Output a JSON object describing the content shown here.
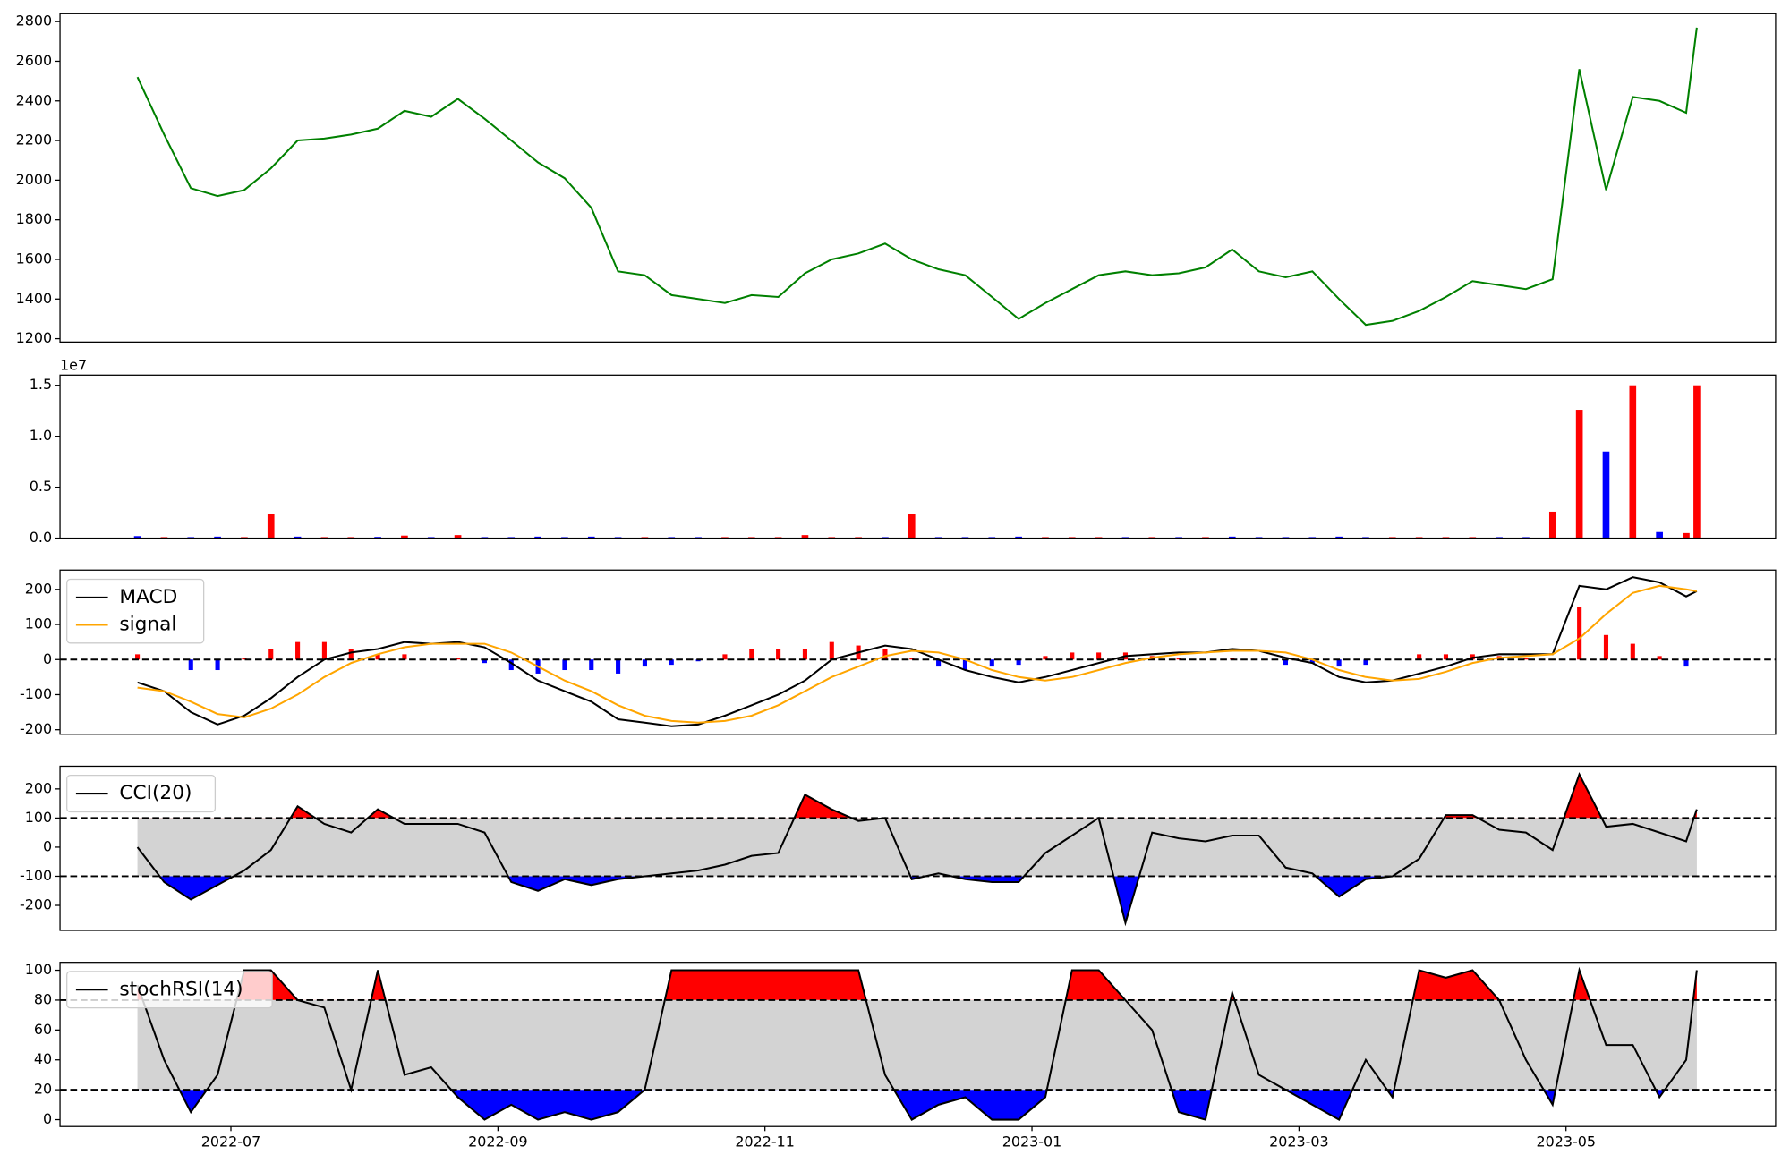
{
  "chart_data": {
    "type": "multi-panel",
    "x": [
      0.3,
      0.5,
      0.7,
      0.9,
      1.1,
      1.3,
      1.5,
      1.7,
      1.9,
      2.1,
      2.3,
      2.5,
      2.7,
      2.9,
      3.1,
      3.3,
      3.5,
      3.7,
      3.9,
      4.1,
      4.3,
      4.5,
      4.7,
      4.9,
      5.1,
      5.3,
      5.5,
      5.7,
      5.9,
      6.1,
      6.3,
      6.5,
      6.7,
      6.9,
      7.1,
      7.3,
      7.5,
      7.7,
      7.9,
      8.1,
      8.3,
      8.5,
      8.7,
      8.9,
      9.1,
      9.3,
      9.5,
      9.7,
      9.9,
      10.1,
      10.3,
      10.5,
      10.7,
      10.9,
      11.1,
      11.3,
      11.5,
      11.7,
      11.9,
      11.98
    ],
    "xlim": [
      -0.28,
      12.57
    ],
    "xticks": [
      {
        "value": 1,
        "label": "2022-07"
      },
      {
        "value": 3,
        "label": "2022-09"
      },
      {
        "value": 5,
        "label": "2022-11"
      },
      {
        "value": 7,
        "label": "2023-01"
      },
      {
        "value": 9,
        "label": "2023-03"
      },
      {
        "value": 11,
        "label": "2023-05"
      }
    ],
    "panels": [
      {
        "type": "line",
        "color": "green",
        "values": [
          2520,
          2230,
          1960,
          1920,
          1950,
          2060,
          2200,
          2210,
          2230,
          2260,
          2350,
          2320,
          2410,
          2310,
          2200,
          2090,
          2010,
          1860,
          1540,
          1520,
          1420,
          1400,
          1380,
          1420,
          1410,
          1530,
          1600,
          1630,
          1680,
          1600,
          1550,
          1520,
          1410,
          1300,
          1380,
          1450,
          1520,
          1540,
          1520,
          1530,
          1560,
          1650,
          1540,
          1510,
          1540,
          1400,
          1270,
          1290,
          1340,
          1410,
          1490,
          1470,
          1450,
          1500,
          2560,
          1950,
          2420,
          2400,
          2340,
          2770
        ],
        "ylim": [
          1183,
          2840
        ],
        "yticks": [
          1200,
          1400,
          1600,
          1800,
          2000,
          2200,
          2400,
          2600,
          2800
        ]
      },
      {
        "type": "bar",
        "offset_label": "1e7",
        "values": [
          200000,
          100000,
          100000,
          150000,
          100000,
          2400000,
          150000,
          100000,
          100000,
          120000,
          250000,
          100000,
          300000,
          100000,
          100000,
          150000,
          100000,
          150000,
          100000,
          100000,
          100000,
          100000,
          100000,
          100000,
          100000,
          300000,
          100000,
          100000,
          100000,
          2400000,
          100000,
          100000,
          100000,
          150000,
          100000,
          100000,
          100000,
          100000,
          100000,
          100000,
          100000,
          150000,
          100000,
          100000,
          100000,
          150000,
          100000,
          100000,
          100000,
          100000,
          100000,
          100000,
          100000,
          2600000,
          12600000,
          8500000,
          15000000,
          600000,
          500000,
          15000000
        ],
        "colors": [
          "blue",
          "red",
          "blue",
          "blue",
          "red",
          "red",
          "blue",
          "red",
          "red",
          "blue",
          "red",
          "blue",
          "red",
          "blue",
          "blue",
          "blue",
          "blue",
          "blue",
          "blue",
          "red",
          "blue",
          "blue",
          "red",
          "red",
          "red",
          "red",
          "red",
          "red",
          "blue",
          "red",
          "blue",
          "blue",
          "blue",
          "blue",
          "red",
          "red",
          "red",
          "blue",
          "red",
          "blue",
          "red",
          "blue",
          "blue",
          "blue",
          "blue",
          "blue",
          "blue",
          "red",
          "red",
          "red",
          "red",
          "blue",
          "blue",
          "red",
          "red",
          "blue",
          "red",
          "blue",
          "red",
          "red"
        ],
        "ylim": [
          0,
          16000000
        ],
        "yticks": [
          {
            "value": 0,
            "label": "0.0"
          },
          {
            "value": 5000000,
            "label": "0.5"
          },
          {
            "value": 10000000,
            "label": "1.0"
          },
          {
            "value": 15000000,
            "label": "1.5"
          }
        ]
      },
      {
        "type": "macd",
        "legend": "upper left",
        "series": [
          {
            "name": "MACD",
            "color": "black",
            "values": [
              -65,
              -90,
              -150,
              -185,
              -160,
              -110,
              -50,
              0,
              20,
              30,
              50,
              45,
              50,
              35,
              -10,
              -60,
              -90,
              -120,
              -170,
              -180,
              -190,
              -185,
              -160,
              -130,
              -100,
              -60,
              0,
              20,
              40,
              30,
              0,
              -30,
              -50,
              -65,
              -50,
              -30,
              -10,
              10,
              15,
              20,
              20,
              30,
              25,
              5,
              -10,
              -50,
              -65,
              -60,
              -40,
              -20,
              5,
              15,
              15,
              15,
              210,
              200,
              235,
              220,
              180,
              195
            ]
          },
          {
            "name": "signal",
            "color": "orange",
            "values": [
              -80,
              -90,
              -120,
              -155,
              -165,
              -140,
              -100,
              -50,
              -10,
              15,
              35,
              45,
              45,
              45,
              20,
              -20,
              -60,
              -90,
              -130,
              -160,
              -175,
              -180,
              -175,
              -160,
              -130,
              -90,
              -50,
              -20,
              10,
              25,
              20,
              0,
              -30,
              -50,
              -60,
              -50,
              -30,
              -10,
              5,
              15,
              20,
              25,
              25,
              20,
              0,
              -30,
              -50,
              -60,
              -55,
              -35,
              -10,
              5,
              10,
              15,
              60,
              130,
              190,
              210,
              200,
              195
            ]
          }
        ],
        "histogram": {
          "up_color": "red",
          "down_color": "blue",
          "values": [
            15,
            0,
            -30,
            -30,
            5,
            30,
            50,
            50,
            30,
            15,
            15,
            0,
            5,
            -10,
            -30,
            -40,
            -30,
            -30,
            -40,
            -20,
            -15,
            -5,
            15,
            30,
            30,
            30,
            50,
            40,
            30,
            5,
            -20,
            -30,
            -20,
            -15,
            10,
            20,
            20,
            20,
            10,
            5,
            0,
            5,
            0,
            -15,
            -10,
            -20,
            -15,
            0,
            15,
            15,
            15,
            10,
            5,
            0,
            150,
            70,
            45,
            10,
            -20,
            0
          ]
        },
        "levels": [
          0
        ],
        "ylim": [
          -213,
          255
        ],
        "yticks": [
          -200,
          -100,
          0,
          100,
          200
        ]
      },
      {
        "type": "oscillator",
        "legend": "upper left",
        "band_color": "lightgray",
        "above_color": "red",
        "below_color": "blue",
        "series": [
          {
            "name": "CCI(20)",
            "color": "black",
            "values": [
              0,
              -120,
              -180,
              -130,
              -80,
              -10,
              140,
              80,
              50,
              130,
              80,
              80,
              80,
              50,
              -120,
              -150,
              -110,
              -130,
              -110,
              -100,
              -90,
              -80,
              -60,
              -30,
              -20,
              180,
              130,
              90,
              100,
              -110,
              -90,
              -110,
              -120,
              -120,
              -20,
              40,
              100,
              -260,
              50,
              30,
              20,
              40,
              40,
              -70,
              -90,
              -170,
              -110,
              -100,
              -40,
              110,
              110,
              60,
              50,
              -10,
              250,
              70,
              80,
              50,
              20,
              130
            ]
          }
        ],
        "levels": [
          100,
          -100
        ],
        "ylim": [
          -286,
          278
        ],
        "yticks": [
          -200,
          -100,
          0,
          100,
          200
        ]
      },
      {
        "type": "oscillator",
        "legend": "upper left",
        "band_color": "lightgray",
        "above_color": "red",
        "below_color": "blue",
        "series": [
          {
            "name": "stochRSI(14)",
            "color": "black",
            "values": [
              90,
              40,
              5,
              30,
              100,
              100,
              80,
              75,
              20,
              100,
              30,
              35,
              15,
              0,
              10,
              0,
              5,
              0,
              5,
              20,
              100,
              100,
              100,
              100,
              100,
              100,
              100,
              100,
              30,
              0,
              10,
              15,
              0,
              0,
              15,
              100,
              100,
              80,
              60,
              5,
              0,
              85,
              30,
              20,
              10,
              0,
              40,
              15,
              100,
              95,
              100,
              80,
              40,
              10,
              100,
              50,
              50,
              15,
              40,
              100
            ]
          }
        ],
        "levels": [
          80,
          20
        ],
        "ylim": [
          -4.6,
          105.3
        ],
        "yticks": [
          0,
          20,
          40,
          60,
          80,
          100
        ]
      }
    ]
  }
}
